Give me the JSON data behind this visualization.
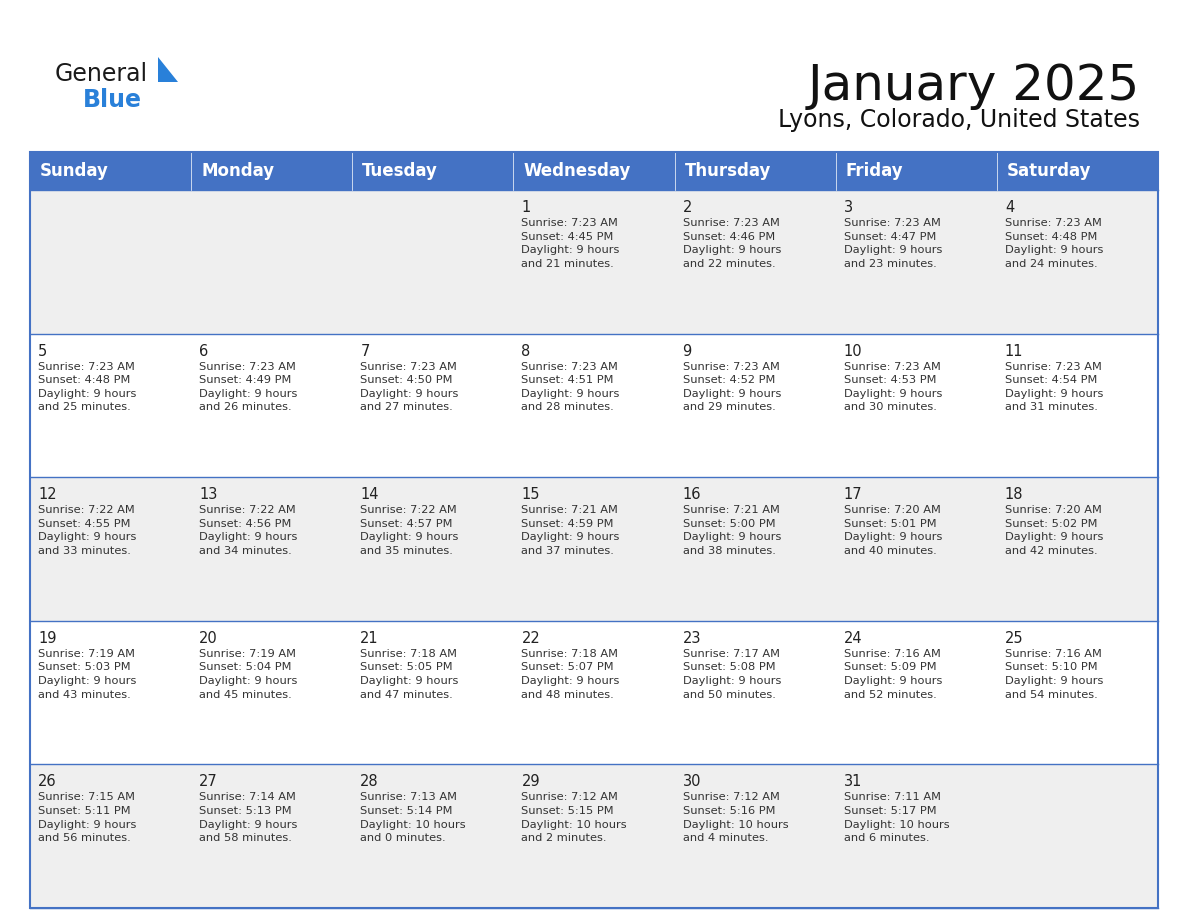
{
  "title": "January 2025",
  "subtitle": "Lyons, Colorado, United States",
  "header_bg": "#4472C4",
  "header_text_color": "#FFFFFF",
  "cell_bg_odd": "#EFEFEF",
  "cell_bg_even": "#FFFFFF",
  "day_names": [
    "Sunday",
    "Monday",
    "Tuesday",
    "Wednesday",
    "Thursday",
    "Friday",
    "Saturday"
  ],
  "weeks": [
    [
      {
        "day": "",
        "info": ""
      },
      {
        "day": "",
        "info": ""
      },
      {
        "day": "",
        "info": ""
      },
      {
        "day": "1",
        "info": "Sunrise: 7:23 AM\nSunset: 4:45 PM\nDaylight: 9 hours\nand 21 minutes."
      },
      {
        "day": "2",
        "info": "Sunrise: 7:23 AM\nSunset: 4:46 PM\nDaylight: 9 hours\nand 22 minutes."
      },
      {
        "day": "3",
        "info": "Sunrise: 7:23 AM\nSunset: 4:47 PM\nDaylight: 9 hours\nand 23 minutes."
      },
      {
        "day": "4",
        "info": "Sunrise: 7:23 AM\nSunset: 4:48 PM\nDaylight: 9 hours\nand 24 minutes."
      }
    ],
    [
      {
        "day": "5",
        "info": "Sunrise: 7:23 AM\nSunset: 4:48 PM\nDaylight: 9 hours\nand 25 minutes."
      },
      {
        "day": "6",
        "info": "Sunrise: 7:23 AM\nSunset: 4:49 PM\nDaylight: 9 hours\nand 26 minutes."
      },
      {
        "day": "7",
        "info": "Sunrise: 7:23 AM\nSunset: 4:50 PM\nDaylight: 9 hours\nand 27 minutes."
      },
      {
        "day": "8",
        "info": "Sunrise: 7:23 AM\nSunset: 4:51 PM\nDaylight: 9 hours\nand 28 minutes."
      },
      {
        "day": "9",
        "info": "Sunrise: 7:23 AM\nSunset: 4:52 PM\nDaylight: 9 hours\nand 29 minutes."
      },
      {
        "day": "10",
        "info": "Sunrise: 7:23 AM\nSunset: 4:53 PM\nDaylight: 9 hours\nand 30 minutes."
      },
      {
        "day": "11",
        "info": "Sunrise: 7:23 AM\nSunset: 4:54 PM\nDaylight: 9 hours\nand 31 minutes."
      }
    ],
    [
      {
        "day": "12",
        "info": "Sunrise: 7:22 AM\nSunset: 4:55 PM\nDaylight: 9 hours\nand 33 minutes."
      },
      {
        "day": "13",
        "info": "Sunrise: 7:22 AM\nSunset: 4:56 PM\nDaylight: 9 hours\nand 34 minutes."
      },
      {
        "day": "14",
        "info": "Sunrise: 7:22 AM\nSunset: 4:57 PM\nDaylight: 9 hours\nand 35 minutes."
      },
      {
        "day": "15",
        "info": "Sunrise: 7:21 AM\nSunset: 4:59 PM\nDaylight: 9 hours\nand 37 minutes."
      },
      {
        "day": "16",
        "info": "Sunrise: 7:21 AM\nSunset: 5:00 PM\nDaylight: 9 hours\nand 38 minutes."
      },
      {
        "day": "17",
        "info": "Sunrise: 7:20 AM\nSunset: 5:01 PM\nDaylight: 9 hours\nand 40 minutes."
      },
      {
        "day": "18",
        "info": "Sunrise: 7:20 AM\nSunset: 5:02 PM\nDaylight: 9 hours\nand 42 minutes."
      }
    ],
    [
      {
        "day": "19",
        "info": "Sunrise: 7:19 AM\nSunset: 5:03 PM\nDaylight: 9 hours\nand 43 minutes."
      },
      {
        "day": "20",
        "info": "Sunrise: 7:19 AM\nSunset: 5:04 PM\nDaylight: 9 hours\nand 45 minutes."
      },
      {
        "day": "21",
        "info": "Sunrise: 7:18 AM\nSunset: 5:05 PM\nDaylight: 9 hours\nand 47 minutes."
      },
      {
        "day": "22",
        "info": "Sunrise: 7:18 AM\nSunset: 5:07 PM\nDaylight: 9 hours\nand 48 minutes."
      },
      {
        "day": "23",
        "info": "Sunrise: 7:17 AM\nSunset: 5:08 PM\nDaylight: 9 hours\nand 50 minutes."
      },
      {
        "day": "24",
        "info": "Sunrise: 7:16 AM\nSunset: 5:09 PM\nDaylight: 9 hours\nand 52 minutes."
      },
      {
        "day": "25",
        "info": "Sunrise: 7:16 AM\nSunset: 5:10 PM\nDaylight: 9 hours\nand 54 minutes."
      }
    ],
    [
      {
        "day": "26",
        "info": "Sunrise: 7:15 AM\nSunset: 5:11 PM\nDaylight: 9 hours\nand 56 minutes."
      },
      {
        "day": "27",
        "info": "Sunrise: 7:14 AM\nSunset: 5:13 PM\nDaylight: 9 hours\nand 58 minutes."
      },
      {
        "day": "28",
        "info": "Sunrise: 7:13 AM\nSunset: 5:14 PM\nDaylight: 10 hours\nand 0 minutes."
      },
      {
        "day": "29",
        "info": "Sunrise: 7:12 AM\nSunset: 5:15 PM\nDaylight: 10 hours\nand 2 minutes."
      },
      {
        "day": "30",
        "info": "Sunrise: 7:12 AM\nSunset: 5:16 PM\nDaylight: 10 hours\nand 4 minutes."
      },
      {
        "day": "31",
        "info": "Sunrise: 7:11 AM\nSunset: 5:17 PM\nDaylight: 10 hours\nand 6 minutes."
      },
      {
        "day": "",
        "info": ""
      }
    ]
  ],
  "logo_text_general": "General",
  "logo_text_blue": "Blue",
  "logo_color_general": "#1a1a1a",
  "logo_color_blue": "#2980D9",
  "logo_triangle_color": "#2980D9",
  "title_fontsize": 36,
  "subtitle_fontsize": 17,
  "header_fontsize": 12,
  "day_num_fontsize": 10.5,
  "info_fontsize": 8.2,
  "border_color": "#4472C4",
  "divider_color": "#4472C4"
}
